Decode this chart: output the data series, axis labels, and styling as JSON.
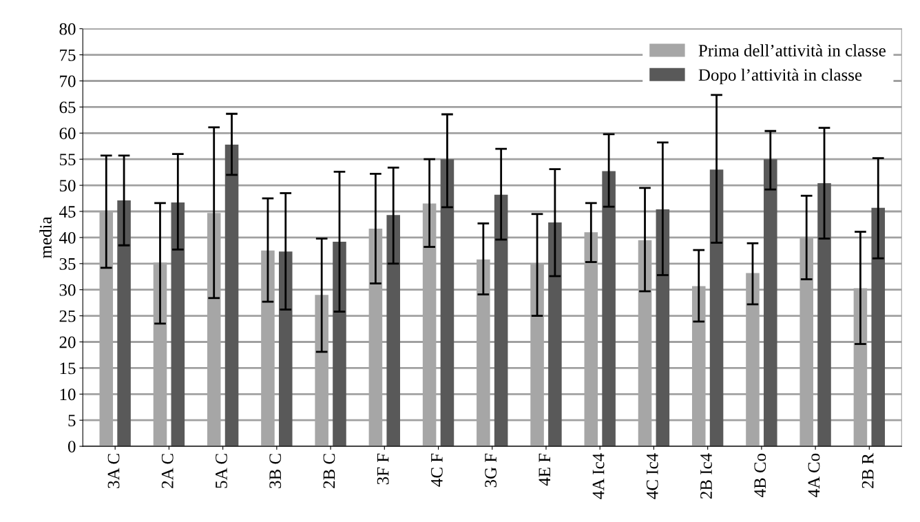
{
  "chart_data": {
    "type": "bar",
    "ylabel": "media",
    "categories": [
      "3A C",
      "2A C",
      "5A C",
      "3B C",
      "2B C",
      "3F F",
      "4C F",
      "3G F",
      "4E F",
      "4A Ic4",
      "4C Ic4",
      "2B Ic4",
      "4B Co",
      "4A Co",
      "2B R"
    ],
    "series": [
      {
        "name": "Prima dell’attività in classe",
        "color": "#a6a6a6",
        "values": [
          45,
          35.2,
          44.7,
          37.5,
          29,
          41.7,
          46.5,
          35.8,
          35.1,
          41,
          39.5,
          30.7,
          33.2,
          40.1,
          30.3
        ],
        "errors": [
          [
            34.2,
            55.7
          ],
          [
            23.5,
            46.6
          ],
          [
            28.4,
            61.1
          ],
          [
            27.7,
            47.5
          ],
          [
            18.1,
            39.8
          ],
          [
            31.2,
            52.2
          ],
          [
            38.2,
            55
          ],
          [
            29.1,
            42.7
          ],
          [
            25,
            44.5
          ],
          [
            35.3,
            46.6
          ],
          [
            29.7,
            49.5
          ],
          [
            23.9,
            37.6
          ],
          [
            27.2,
            38.9
          ],
          [
            32,
            48
          ],
          [
            19.6,
            41.1
          ]
        ]
      },
      {
        "name": "Dopo l’attività in classe",
        "color": "#595959",
        "values": [
          47.1,
          46.7,
          57.8,
          37.3,
          39.2,
          44.3,
          55,
          48.2,
          42.9,
          52.7,
          45.4,
          53,
          55,
          50.4,
          45.7
        ],
        "errors": [
          [
            38.5,
            55.7
          ],
          [
            37.7,
            56
          ],
          [
            52,
            63.7
          ],
          [
            26.2,
            48.5
          ],
          [
            25.8,
            52.6
          ],
          [
            35,
            53.4
          ],
          [
            45.8,
            63.6
          ],
          [
            39.6,
            57
          ],
          [
            32.6,
            53.1
          ],
          [
            45.9,
            59.8
          ],
          [
            32.8,
            58.2
          ],
          [
            39,
            67.3
          ],
          [
            49.2,
            60.4
          ],
          [
            39.8,
            61
          ],
          [
            36,
            55.2
          ]
        ]
      }
    ],
    "ylim": [
      0,
      80
    ],
    "yticks": [
      0,
      5,
      10,
      15,
      20,
      25,
      30,
      35,
      40,
      45,
      50,
      55,
      60,
      65,
      70,
      75,
      80
    ],
    "grid": "y",
    "legend": "top right"
  }
}
